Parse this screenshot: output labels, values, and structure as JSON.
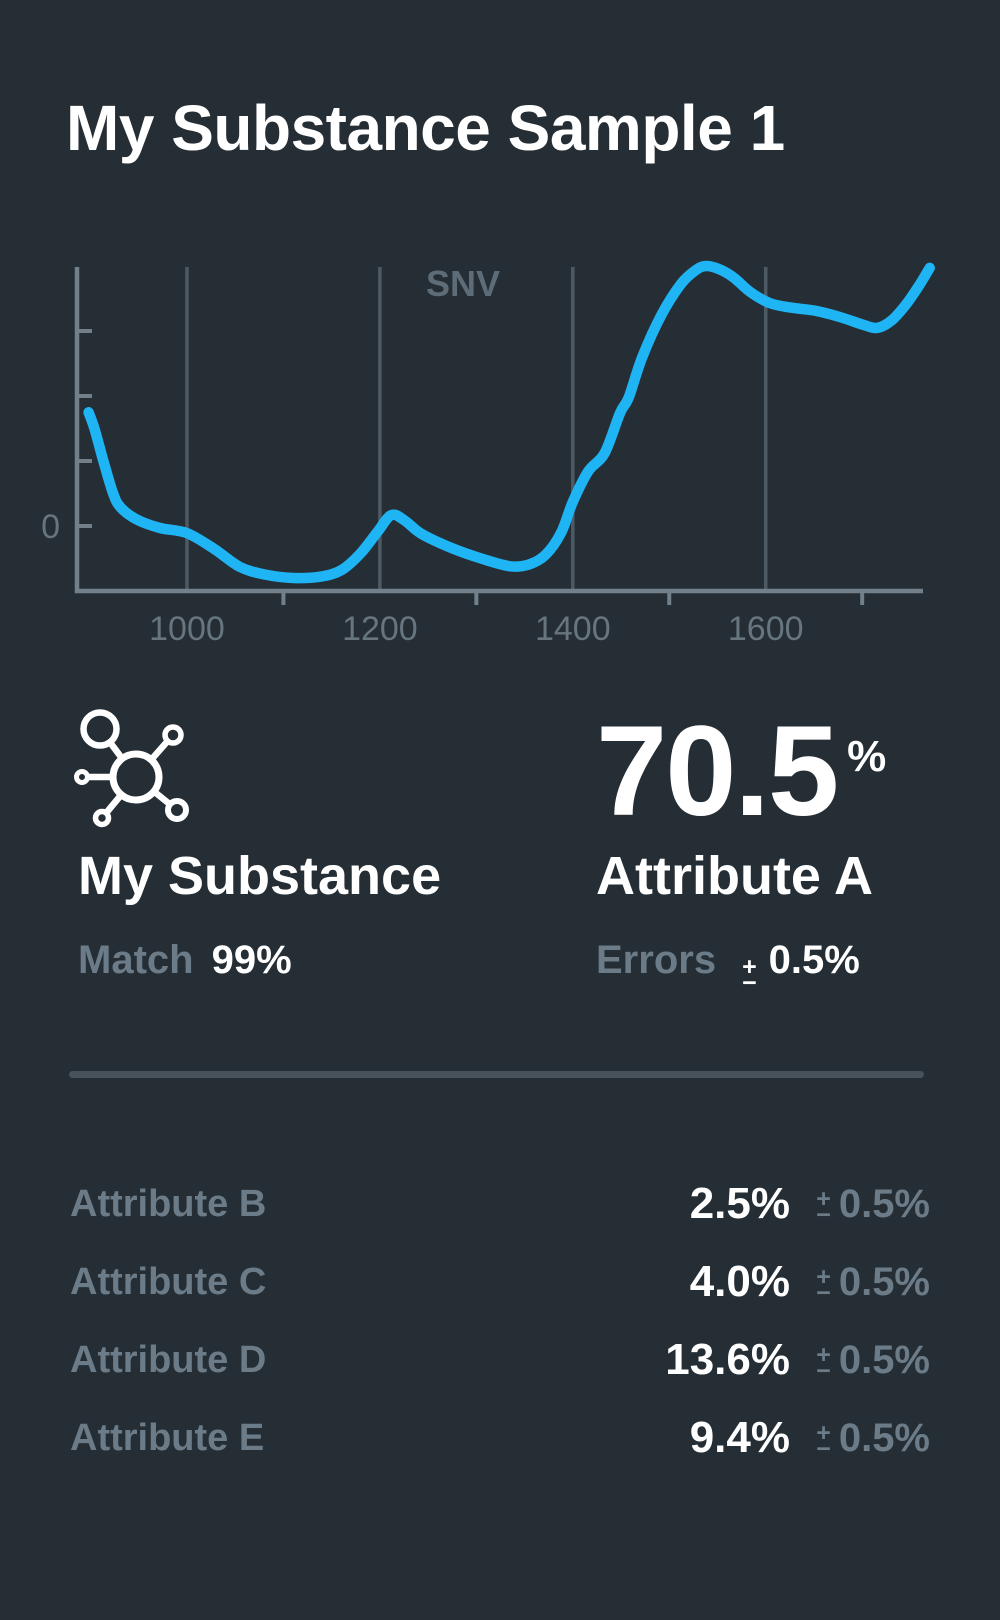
{
  "title": "My Substance Sample 1",
  "colors": {
    "background": "#252D35",
    "accent_blue": "#1FB4F3",
    "muted_gray": "#6B7C88",
    "axis_gray": "#71808A",
    "grid_gray": "#4E5A63",
    "divider_gray": "#47525B"
  },
  "chart_data": {
    "type": "line",
    "title": "SNV",
    "xlabel": "",
    "ylabel": "",
    "x_ticks_labeled": [
      1000,
      1200,
      1400,
      1600
    ],
    "x_ticks_minor": [
      1100,
      1300,
      1500,
      1700
    ],
    "y_ticks": [
      0,
      1,
      2,
      3
    ],
    "y_zero_label": "0",
    "xlim": [
      886,
      1763
    ],
    "ylim": [
      -1,
      3.98
    ],
    "grid": "vertical-only",
    "legend_position": "none",
    "series_color": "#1FB4F3",
    "points": [
      [
        898,
        1.75
      ],
      [
        904,
        1.5
      ],
      [
        913,
        1.02
      ],
      [
        923,
        0.52
      ],
      [
        931,
        0.29
      ],
      [
        948,
        0.1
      ],
      [
        972,
        -0.03
      ],
      [
        1000,
        -0.11
      ],
      [
        1028,
        -0.35
      ],
      [
        1055,
        -0.63
      ],
      [
        1082,
        -0.75
      ],
      [
        1110,
        -0.8
      ],
      [
        1138,
        -0.78
      ],
      [
        1160,
        -0.68
      ],
      [
        1180,
        -0.42
      ],
      [
        1198,
        -0.08
      ],
      [
        1212,
        0.17
      ],
      [
        1226,
        0.08
      ],
      [
        1243,
        -0.12
      ],
      [
        1273,
        -0.33
      ],
      [
        1305,
        -0.5
      ],
      [
        1335,
        -0.62
      ],
      [
        1355,
        -0.59
      ],
      [
        1372,
        -0.44
      ],
      [
        1388,
        -0.1
      ],
      [
        1400,
        0.37
      ],
      [
        1416,
        0.84
      ],
      [
        1433,
        1.12
      ],
      [
        1449,
        1.74
      ],
      [
        1458,
        1.98
      ],
      [
        1472,
        2.6
      ],
      [
        1492,
        3.25
      ],
      [
        1512,
        3.72
      ],
      [
        1527,
        3.93
      ],
      [
        1538,
        4.0
      ],
      [
        1552,
        3.95
      ],
      [
        1567,
        3.82
      ],
      [
        1584,
        3.6
      ],
      [
        1604,
        3.43
      ],
      [
        1626,
        3.36
      ],
      [
        1652,
        3.31
      ],
      [
        1678,
        3.21
      ],
      [
        1702,
        3.09
      ],
      [
        1716,
        3.05
      ],
      [
        1731,
        3.17
      ],
      [
        1746,
        3.42
      ],
      [
        1759,
        3.7
      ],
      [
        1770,
        3.97
      ]
    ]
  },
  "sample": {
    "icon": "molecule-icon",
    "name": "My Substance",
    "match_label": "Match",
    "match_value": "99%"
  },
  "primary_attribute": {
    "value": "70.5",
    "unit": "%",
    "name": "Attribute A",
    "errors_label": "Errors",
    "plus_sign": "+",
    "minus_sign": "−",
    "error_value": "0.5%"
  },
  "attributes": [
    {
      "name": "Attribute B",
      "value": "2.5%",
      "error": "0.5%"
    },
    {
      "name": "Attribute C",
      "value": "4.0%",
      "error": "0.5%"
    },
    {
      "name": "Attribute D",
      "value": "13.6%",
      "error": "0.5%"
    },
    {
      "name": "Attribute E",
      "value": "9.4%",
      "error": "0.5%"
    }
  ]
}
